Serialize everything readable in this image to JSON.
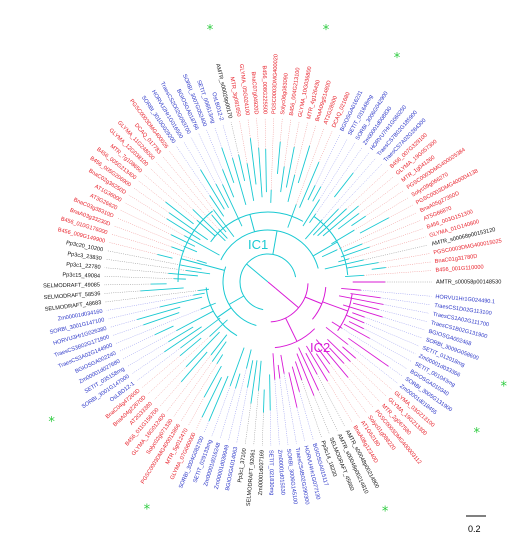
{
  "colors": {
    "dicot": "#e8202a",
    "monocot": "#2b36c8",
    "basal": "#111111",
    "clade_ic1": "#19c9d2",
    "clade_ic2": "#d91ad6",
    "star": "#2ecc40",
    "dotted_dicot": "#f08a8a",
    "dotted_monocot": "#8a8ef0"
  },
  "clades": {
    "ic1": "IC1",
    "ic2": "IC2"
  },
  "scale_bar": {
    "value": "0.2"
  },
  "tree": {
    "labels": [
      {
        "text": "AMTR_s00058p00148530",
        "group": "basal",
        "angle": 0
      },
      {
        "text": "HORVU1Hr1G024490.1",
        "group": "monocot",
        "angle": 5
      },
      {
        "text": "TraesCS1D02G113100",
        "group": "monocot",
        "angle": 8
      },
      {
        "text": "TraesCS1A02G111700",
        "group": "monocot",
        "angle": 11
      },
      {
        "text": "TraesCS1B02G131900",
        "group": "monocot",
        "angle": 14
      },
      {
        "text": "BGIOSGA002468",
        "group": "monocot",
        "angle": 17
      },
      {
        "text": "SORBI_3009G058600",
        "group": "monocot",
        "angle": 20
      },
      {
        "text": "SETIT_012018mg",
        "group": "monocot",
        "angle": 23
      },
      {
        "text": "Zm00001d033366",
        "group": "monocot",
        "angle": 26
      },
      {
        "text": "SETIT_001043mg",
        "group": "monocot",
        "angle": 29
      },
      {
        "text": "BGIOSGA010340",
        "group": "monocot",
        "angle": 32
      },
      {
        "text": "SORBI_3005G131900",
        "group": "monocot",
        "angle": 35
      },
      {
        "text": "Zm00001d018455",
        "group": "monocot",
        "angle": 38
      },
      {
        "text": "GLYMA_03G213100",
        "group": "dicot",
        "angle": 41
      },
      {
        "text": "GLYMA_19G213300",
        "group": "dicot",
        "angle": 44
      },
      {
        "text": "MTR_2g067580",
        "group": "dicot",
        "angle": 47
      },
      {
        "text": "PGSC0003DMG400003112",
        "group": "dicot",
        "angle": 50
      },
      {
        "text": "Solyc01g088220",
        "group": "dicot",
        "angle": 53
      },
      {
        "text": "AT1G62180",
        "group": "dicot",
        "angle": 56
      },
      {
        "text": "BnaA08g12340D",
        "group": "dicot",
        "angle": 59
      },
      {
        "text": "AMTR_s00048p00214800",
        "group": "basal",
        "angle": 62
      },
      {
        "text": "AMTR_s00048p00214810",
        "group": "basal",
        "angle": 65
      },
      {
        "text": "SELMODRAFT_45660",
        "group": "basal",
        "angle": 68
      },
      {
        "text": "Pp3c14_18230",
        "group": "basal",
        "angle": 71
      },
      {
        "text": "BGIOSGA015117",
        "group": "monocot",
        "angle": 74
      },
      {
        "text": "HORVU4Hr1G077130",
        "group": "monocot",
        "angle": 77
      },
      {
        "text": "TraesCS4B02G290300",
        "group": "monocot",
        "angle": 80
      },
      {
        "text": "SORBI_3006G145100",
        "group": "monocot",
        "angle": 83
      },
      {
        "text": "Zm00001d015530",
        "group": "monocot",
        "angle": 86
      },
      {
        "text": "SETIT_021830mg",
        "group": "monocot",
        "angle": 89
      },
      {
        "text": "Zm00001d037169",
        "group": "basal",
        "angle": 92
      },
      {
        "text": "SELMODRAFT_92061",
        "group": "basal",
        "angle": 95
      },
      {
        "text": "Pp3c1_37100",
        "group": "basal",
        "angle": 98
      },
      {
        "text": "BGIOSGA014063",
        "group": "monocot",
        "angle": 101
      },
      {
        "text": "Zm00001d039949",
        "group": "monocot",
        "angle": 104
      },
      {
        "text": "Zm00001d016248",
        "group": "monocot",
        "angle": 107
      },
      {
        "text": "SETIT_029133mg",
        "group": "monocot",
        "angle": 110
      },
      {
        "text": "SORBI_3004G082700",
        "group": "monocot",
        "angle": 113
      },
      {
        "text": "GLYMA_07G060000",
        "group": "dicot",
        "angle": 116
      },
      {
        "text": "MTR_5g012470",
        "group": "dicot",
        "angle": 119
      },
      {
        "text": "PGSC0003DMG400012866",
        "group": "dicot",
        "angle": 122
      },
      {
        "text": "Solyc02g071330",
        "group": "dicot",
        "angle": 125
      },
      {
        "text": "GLYMA_16G012400",
        "group": "dicot",
        "angle": 128
      },
      {
        "text": "B456_011G156700",
        "group": "dicot",
        "angle": 131
      },
      {
        "text": "AT2G33380",
        "group": "dicot",
        "angle": 134
      },
      {
        "text": "BnaA04g22670D",
        "group": "dicot",
        "angle": 137
      },
      {
        "text": "BnaC04g47260D",
        "group": "dicot",
        "angle": 140
      },
      {
        "text": "OsLBD12-1",
        "group": "monocot",
        "angle": 143
      },
      {
        "text": "SORBI_3001G147000",
        "group": "monocot",
        "angle": 146
      },
      {
        "text": "SETIT_035158mg",
        "group": "monocot",
        "angle": 149
      },
      {
        "text": "Zm00001d027680",
        "group": "monocot",
        "angle": 152
      },
      {
        "text": "BGIOSGA002240",
        "group": "monocot",
        "angle": 155
      },
      {
        "text": "TraesCS3A02G144900",
        "group": "monocot",
        "angle": 158
      },
      {
        "text": "TraesCS3B02G171800",
        "group": "monocot",
        "angle": 161
      },
      {
        "text": "HORVU3Hr1G026380",
        "group": "monocot",
        "angle": 164
      },
      {
        "text": "SORBI_3001G147100",
        "group": "monocot",
        "angle": 167
      },
      {
        "text": "Zm00001d034160",
        "group": "monocot",
        "angle": 170
      },
      {
        "text": "SELMODRAFT_48683",
        "group": "basal",
        "angle": 173
      },
      {
        "text": "SELMODRAFT_58536",
        "group": "basal",
        "angle": 176
      },
      {
        "text": "SELMODRAFT_49085",
        "group": "basal",
        "angle": 179
      },
      {
        "text": "Pp3c15_49084",
        "group": "basal",
        "angle": 182
      },
      {
        "text": "Pp3c1_22780",
        "group": "basal",
        "angle": 185
      },
      {
        "text": "Pp3c3_23830",
        "group": "basal",
        "angle": 188
      },
      {
        "text": "Pp3c20_10200",
        "group": "basal",
        "angle": 191
      },
      {
        "text": "B456_009G149900",
        "group": "dicot",
        "angle": 194
      },
      {
        "text": "B456_010G176000",
        "group": "dicot",
        "angle": 197
      },
      {
        "text": "BnaA03g33230D",
        "group": "dicot",
        "angle": 200
      },
      {
        "text": "BnaC03g38310D",
        "group": "dicot",
        "angle": 203
      },
      {
        "text": "AT3G26620",
        "group": "dicot",
        "angle": 206
      },
      {
        "text": "AT1G36000",
        "group": "dicot",
        "angle": 209
      },
      {
        "text": "BnaC02g36250D",
        "group": "dicot",
        "angle": 212
      },
      {
        "text": "B456_005G206900",
        "group": "dicot",
        "angle": 215
      },
      {
        "text": "B456_005G213400",
        "group": "dicot",
        "angle": 218
      },
      {
        "text": "MTR_7g108650",
        "group": "dicot",
        "angle": 221
      },
      {
        "text": "GLYMA_12G038100",
        "group": "dicot",
        "angle": 224
      },
      {
        "text": "GLYMA_11G248000",
        "group": "dicot",
        "angle": 227
      },
      {
        "text": "DCAQ_017783",
        "group": "dicot",
        "angle": 230
      },
      {
        "text": "PGSC0003DMG400026",
        "group": "dicot",
        "angle": 233
      },
      {
        "text": "SORBI_3010G029200",
        "group": "monocot",
        "angle": 236
      },
      {
        "text": "HORVU2Hr1G016500",
        "group": "monocot",
        "angle": 239
      },
      {
        "text": "TraesCS2D02G093700",
        "group": "monocot",
        "angle": 242
      },
      {
        "text": "BGIOSGA018766",
        "group": "monocot",
        "angle": 245
      },
      {
        "text": "SORBI_3007G052400",
        "group": "monocot",
        "angle": 248
      },
      {
        "text": "SETIT_008513mg",
        "group": "monocot",
        "angle": 251
      },
      {
        "text": "OsLBD12-2",
        "group": "monocot",
        "angle": 254
      },
      {
        "text": "AMTR_s00029p00170",
        "group": "basal",
        "angle": 257
      },
      {
        "text": "MTR_3g081650",
        "group": "dicot",
        "angle": 260
      },
      {
        "text": "GLYMA_05G024100",
        "group": "dicot",
        "angle": 263
      },
      {
        "text": "BnaC07g04920D",
        "group": "dicot",
        "angle": 266
      },
      {
        "text": "B456_008G225500",
        "group": "dicot",
        "angle": 269
      },
      {
        "text": "PGSC0003DMG400020",
        "group": "dicot",
        "angle": 272
      },
      {
        "text": "Solyc06g083090",
        "group": "dicot",
        "angle": 275
      },
      {
        "text": "B456_004G213100",
        "group": "dicot",
        "angle": 278
      },
      {
        "text": "GLYMA_10G036800",
        "group": "dicot",
        "angle": 281
      },
      {
        "text": "MTR_4g126430",
        "group": "dicot",
        "angle": 284
      },
      {
        "text": "BnaA09g51480D",
        "group": "dicot",
        "angle": 287
      },
      {
        "text": "AT2G28500",
        "group": "dicot",
        "angle": 290
      },
      {
        "text": "DCAQ_021680",
        "group": "dicot",
        "angle": 293
      },
      {
        "text": "BGIOSGA016231",
        "group": "monocot",
        "angle": 296
      },
      {
        "text": "SETIT_031648mg",
        "group": "monocot",
        "angle": 299
      },
      {
        "text": "SORBI_3006G042900",
        "group": "monocot",
        "angle": 302
      },
      {
        "text": "Zm00001d008830",
        "group": "monocot",
        "angle": 305
      },
      {
        "text": "HORVU7Hr1G060250",
        "group": "monocot",
        "angle": 308
      },
      {
        "text": "TraesCS7B02G185900",
        "group": "monocot",
        "angle": 311
      },
      {
        "text": "TraesCS7A02G284300",
        "group": "monocot",
        "angle": 314
      },
      {
        "text": "B456_007G329100",
        "group": "dicot",
        "angle": 317
      },
      {
        "text": "GLYMA_19G057300",
        "group": "dicot",
        "angle": 320
      },
      {
        "text": "MTR_1g041260",
        "group": "dicot",
        "angle": 323
      },
      {
        "text": "PGSC0003DMG400025384",
        "group": "dicot",
        "angle": 326
      },
      {
        "text": "Solyc09g066270",
        "group": "dicot",
        "angle": 329
      },
      {
        "text": "PGSC0003DMG400004138",
        "group": "dicot",
        "angle": 332
      },
      {
        "text": "BnaA05g27350D",
        "group": "dicot",
        "angle": 335
      },
      {
        "text": "AT5G66870",
        "group": "dicot",
        "angle": 338
      },
      {
        "text": "B456_003G151300",
        "group": "dicot",
        "angle": 341
      },
      {
        "text": "GLYMA_01G140800",
        "group": "dicot",
        "angle": 344
      },
      {
        "text": "AMTR_s00068p00153120",
        "group": "basal",
        "angle": 347
      },
      {
        "text": "PGSC0003DMG400015025",
        "group": "dicot",
        "angle": 350
      },
      {
        "text": "BnaC01g31780D",
        "group": "dicot",
        "angle": 353
      },
      {
        "text": "B456_001G110000",
        "group": "dicot",
        "angle": 356
      }
    ],
    "stars": [
      {
        "symbol": "*",
        "angle": 283
      },
      {
        "symbol": "*",
        "angle": 300
      },
      {
        "symbol": "*",
        "angle": 257
      },
      {
        "symbol": "*",
        "angle": 147
      },
      {
        "symbol": "*",
        "angle": 118
      },
      {
        "symbol": "*",
        "angle": 36
      },
      {
        "symbol": "*",
        "angle": 24
      },
      {
        "symbol": "*",
        "angle": 63
      }
    ]
  }
}
